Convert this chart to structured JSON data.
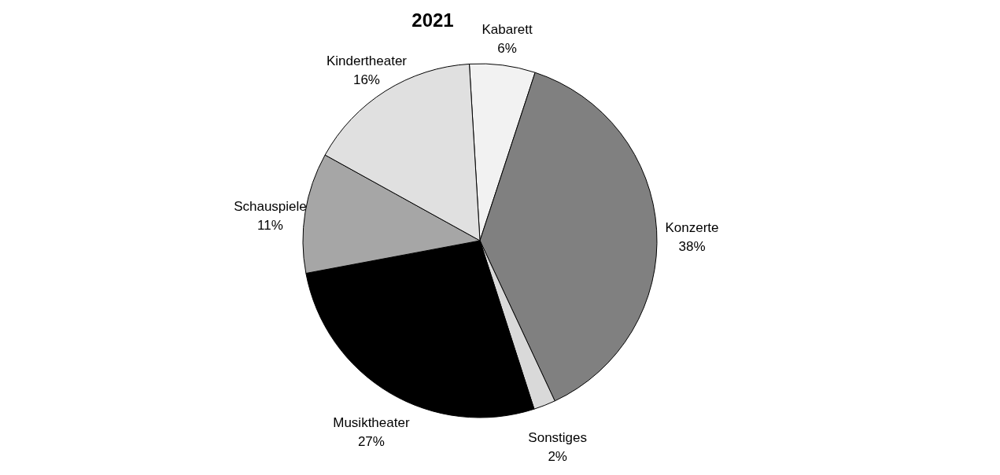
{
  "chart_data": {
    "type": "pie",
    "title": "2021",
    "categories": [
      "Kabarett",
      "Konzerte",
      "Sonstiges",
      "Musiktheater",
      "Schauspiele",
      "Kindertheater"
    ],
    "values": [
      6,
      38,
      2,
      27,
      11,
      16
    ],
    "value_labels": [
      "6%",
      "38%",
      "2%",
      "27%",
      "11%",
      "16%"
    ],
    "colors": [
      "#f2f2f2",
      "#808080",
      "#d9d9d9",
      "#000000",
      "#a6a6a6",
      "#e0e0e0"
    ],
    "legend": false
  }
}
